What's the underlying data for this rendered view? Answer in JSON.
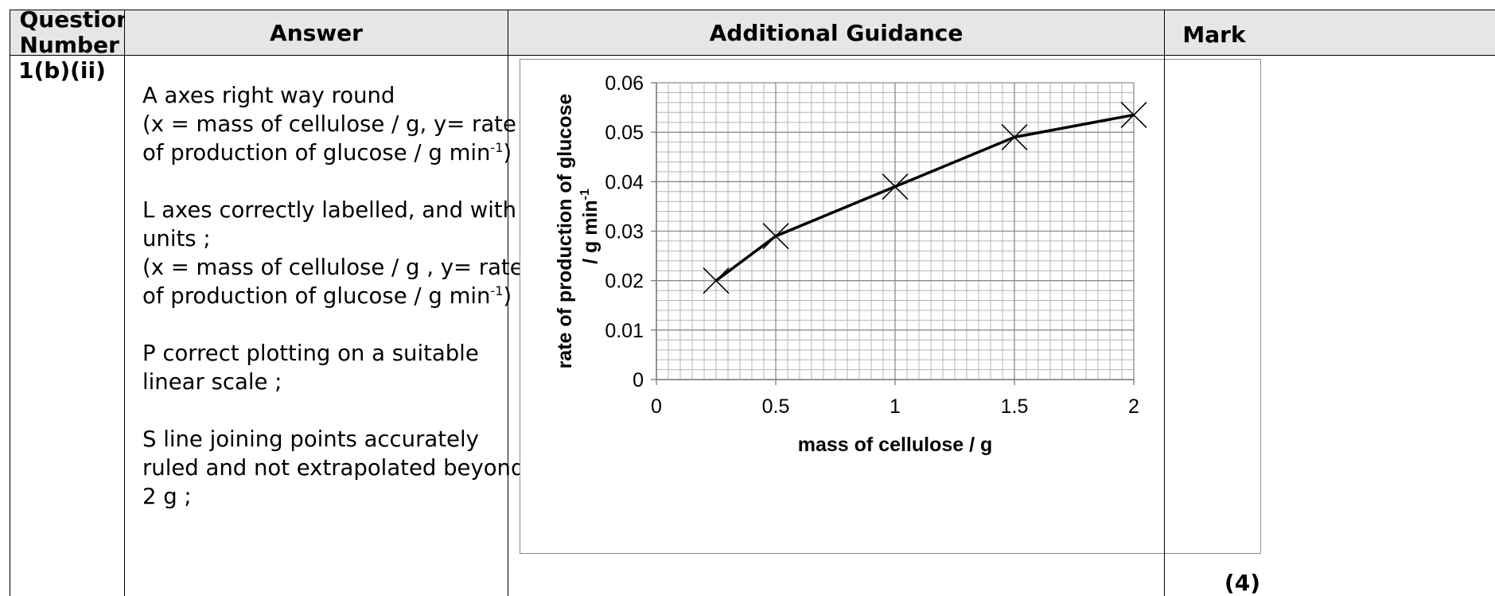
{
  "headers": {
    "question_number": "Question Number",
    "answer": "Answer",
    "guidance": "Additional Guidance",
    "mark": "Mark"
  },
  "row": {
    "question_number": "1(b)(ii)",
    "mark": "(4)",
    "answer_points": [
      {
        "lines": [
          "A axes right way round",
          "(x = mass of cellulose / g, y= rate",
          "of production of glucose / g min"
        ],
        "sup": "-1",
        "tail": ") ;"
      },
      {
        "lines": [
          "L axes correctly labelled, and with",
          "units ;",
          "(x = mass of cellulose / g , y= rate",
          "of production of glucose / g min"
        ],
        "sup": "-1",
        "tail": ") ;"
      },
      {
        "lines": [
          "P correct plotting on a suitable",
          "linear scale ;"
        ]
      },
      {
        "lines": [
          "S line joining points accurately",
          "ruled and not extrapolated beyond",
          "2 g ;"
        ]
      }
    ]
  },
  "chart_data": {
    "type": "line",
    "x": [
      0.25,
      0.5,
      1,
      1.5,
      2
    ],
    "y": [
      0.02,
      0.029,
      0.039,
      0.049,
      0.0535
    ],
    "xlim": [
      0,
      2
    ],
    "ylim": [
      0,
      0.06
    ],
    "x_tick_values": [
      0,
      0.5,
      1,
      1.5,
      2
    ],
    "x_tick_labels": [
      "0",
      "0.5",
      "1",
      "1.5",
      "2"
    ],
    "y_tick_values": [
      0,
      0.01,
      0.02,
      0.03,
      0.04,
      0.05,
      0.06
    ],
    "y_tick_labels": [
      "0",
      "0.01",
      "0.02",
      "0.03",
      "0.04",
      "0.05",
      "0.06"
    ],
    "xlabel": "mass of cellulose / g",
    "ylabel_line1": "rate of production of glucose",
    "ylabel_line2": "/ g min",
    "ylabel_sup": "-1",
    "marker": "x",
    "grid": true,
    "colors": {
      "line": "#000000",
      "grid_major": "#8c8c8c",
      "grid_minor": "#b4b4b4"
    }
  }
}
